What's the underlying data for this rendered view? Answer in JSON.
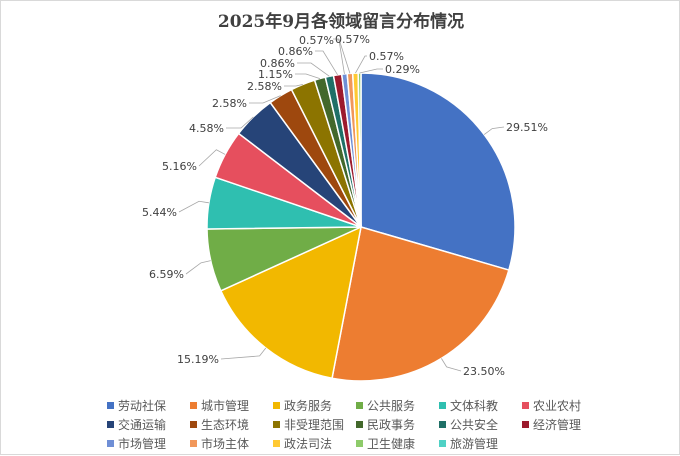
{
  "chart_data": {
    "type": "pie",
    "title": "2025年9月各领域留言分布情况",
    "categories": [
      "劳动社保",
      "城市管理",
      "政务服务",
      "公共服务",
      "文体科教",
      "农业农村",
      "交通运输",
      "生态环境",
      "非受理范围",
      "民政事务",
      "公共安全",
      "经济管理",
      "市场管理",
      "市场主体",
      "政法司法",
      "卫生健康",
      "旅游管理"
    ],
    "values": [
      29.51,
      23.5,
      15.19,
      6.59,
      5.44,
      5.16,
      4.58,
      2.58,
      2.58,
      1.15,
      0.86,
      0.86,
      0.57,
      0.57,
      0.57,
      0.29,
      0
    ],
    "labels": [
      "29.51%",
      "23.50%",
      "15.19%",
      "6.59%",
      "5.44%",
      "5.16%",
      "4.58%",
      "2.58%",
      "2.58%",
      "1.15%",
      "0.86%",
      "0.86%",
      "0.57%",
      "0.57%",
      "0.57%",
      "0.29%",
      ""
    ],
    "colors": [
      "#4472c4",
      "#ed7d31",
      "#f2b800",
      "#70ad47",
      "#2fbfb0",
      "#e64f5e",
      "#264478",
      "#9e480e",
      "#8c7400",
      "#43682b",
      "#1f7067",
      "#9c1a2d",
      "#6f8fd6",
      "#f1975a",
      "#ffc933",
      "#8ecb6a",
      "#4fd1c5"
    ],
    "legend_position": "bottom"
  }
}
